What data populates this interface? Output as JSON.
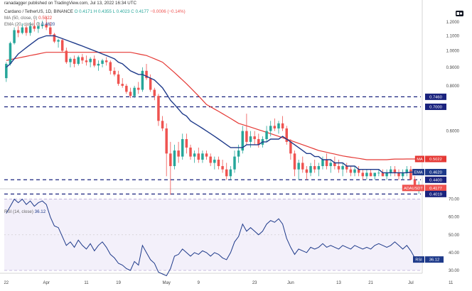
{
  "header": {
    "published_line": "ranadagger published on TradingView.com, Jul 13, 2022 16:34 UTC",
    "symbol": "Cardano / TetherUS, 1D, BINANCE",
    "ohlc_o": "O 0.4171",
    "ohlc_h": "H 0.4355",
    "ohlc_l": "L 0.4023",
    "ohlc_c": "C 0.4177",
    "change": "−0.0006 (−0.14%)",
    "ma_legend_label": "MA (50, close, 0)",
    "ma_legend_value": "0.5022",
    "ema_legend_label": "EMA (20, close, 0)",
    "ema_legend_value": "0.4620",
    "rsi_legend_label": "RSI (14, close)",
    "rsi_legend_value": "36.12"
  },
  "colors": {
    "up": "#26a69a",
    "down": "#ef5350",
    "ma": "#e53935",
    "ema": "#1e3a8a",
    "rsi": "#1e3a8a",
    "level_line": "#1a237e",
    "rsi_band": "#f3f0fa"
  },
  "price_tags": [
    {
      "label": "MA",
      "value": "0.5022",
      "color": "#e53935",
      "price": 0.5022
    },
    {
      "label": "EMA",
      "value": "0.4620",
      "color": "#1e3a8a",
      "price": 0.462
    },
    {
      "label": "",
      "value": "0.4400",
      "color": "#1a237e",
      "price": 0.44
    },
    {
      "label": "ADAUSDT",
      "value": "0.4177",
      "color": "#ef5350",
      "price": 0.4177,
      "sub": "07:25:09"
    },
    {
      "label": "",
      "value": "0.4019",
      "color": "#1a237e",
      "price": 0.4019
    },
    {
      "label": "",
      "value": "0.7000",
      "color": "#1a237e",
      "price": 0.7
    },
    {
      "label": "",
      "value": "0.7460",
      "color": "#1a237e",
      "price": 0.746
    }
  ],
  "rsi_tag": {
    "label": "RSI",
    "value": "36.12"
  },
  "chart_data": {
    "type": "candlestick",
    "symbol": "ADAUSDT",
    "scale": "log",
    "price_axis_ticks": [
      "1.2000",
      "1.1000",
      "1.0000",
      "0.9000",
      "0.8000",
      "0.6000"
    ],
    "price_axis_values": [
      1.2,
      1.1,
      1.0,
      0.9,
      0.8,
      0.6
    ],
    "ylim": [
      0.39,
      1.32
    ],
    "x_tick_labels": [
      "22",
      "Apr",
      "11",
      "19",
      "May",
      "9",
      "23",
      "Jun",
      "13",
      "21",
      "Jul",
      "11"
    ],
    "x_tick_days": [
      0,
      10,
      20,
      28,
      40,
      48,
      62,
      71,
      83,
      91,
      101,
      111
    ],
    "horizontal_levels": [
      0.746,
      0.7,
      0.44,
      0.4019
    ],
    "candles": [
      {
        "o": 0.84,
        "h": 0.93,
        "l": 0.82,
        "c": 0.92
      },
      {
        "o": 0.92,
        "h": 1.06,
        "l": 0.91,
        "c": 1.05
      },
      {
        "o": 1.05,
        "h": 1.16,
        "l": 1.04,
        "c": 1.14
      },
      {
        "o": 1.14,
        "h": 1.17,
        "l": 1.09,
        "c": 1.12
      },
      {
        "o": 1.12,
        "h": 1.19,
        "l": 1.11,
        "c": 1.16
      },
      {
        "o": 1.16,
        "h": 1.18,
        "l": 1.1,
        "c": 1.12
      },
      {
        "o": 1.12,
        "h": 1.2,
        "l": 1.1,
        "c": 1.17
      },
      {
        "o": 1.17,
        "h": 1.22,
        "l": 1.13,
        "c": 1.15
      },
      {
        "o": 1.15,
        "h": 1.2,
        "l": 1.12,
        "c": 1.17
      },
      {
        "o": 1.17,
        "h": 1.21,
        "l": 1.15,
        "c": 1.18
      },
      {
        "o": 1.18,
        "h": 1.24,
        "l": 1.14,
        "c": 1.16
      },
      {
        "o": 1.16,
        "h": 1.2,
        "l": 1.1,
        "c": 1.11
      },
      {
        "o": 1.11,
        "h": 1.12,
        "l": 1.05,
        "c": 1.06
      },
      {
        "o": 1.06,
        "h": 1.08,
        "l": 1.02,
        "c": 1.07
      },
      {
        "o": 1.07,
        "h": 1.08,
        "l": 0.99,
        "c": 1.0
      },
      {
        "o": 1.0,
        "h": 1.02,
        "l": 0.92,
        "c": 0.93
      },
      {
        "o": 0.93,
        "h": 0.96,
        "l": 0.9,
        "c": 0.95
      },
      {
        "o": 0.95,
        "h": 0.97,
        "l": 0.9,
        "c": 0.92
      },
      {
        "o": 0.92,
        "h": 0.97,
        "l": 0.91,
        "c": 0.96
      },
      {
        "o": 0.96,
        "h": 0.98,
        "l": 0.92,
        "c": 0.94
      },
      {
        "o": 0.94,
        "h": 0.97,
        "l": 0.91,
        "c": 0.93
      },
      {
        "o": 0.93,
        "h": 0.96,
        "l": 0.9,
        "c": 0.95
      },
      {
        "o": 0.95,
        "h": 0.97,
        "l": 0.9,
        "c": 0.91
      },
      {
        "o": 0.91,
        "h": 0.94,
        "l": 0.88,
        "c": 0.92
      },
      {
        "o": 0.92,
        "h": 0.95,
        "l": 0.9,
        "c": 0.94
      },
      {
        "o": 0.94,
        "h": 0.96,
        "l": 0.91,
        "c": 0.93
      },
      {
        "o": 0.93,
        "h": 0.94,
        "l": 0.86,
        "c": 0.88
      },
      {
        "o": 0.88,
        "h": 0.9,
        "l": 0.85,
        "c": 0.86
      },
      {
        "o": 0.86,
        "h": 0.88,
        "l": 0.8,
        "c": 0.81
      },
      {
        "o": 0.81,
        "h": 0.84,
        "l": 0.79,
        "c": 0.8
      },
      {
        "o": 0.8,
        "h": 0.81,
        "l": 0.76,
        "c": 0.77
      },
      {
        "o": 0.77,
        "h": 0.79,
        "l": 0.74,
        "c": 0.75
      },
      {
        "o": 0.75,
        "h": 0.8,
        "l": 0.74,
        "c": 0.79
      },
      {
        "o": 0.79,
        "h": 0.82,
        "l": 0.76,
        "c": 0.78
      },
      {
        "o": 0.78,
        "h": 0.9,
        "l": 0.77,
        "c": 0.88
      },
      {
        "o": 0.88,
        "h": 0.92,
        "l": 0.83,
        "c": 0.84
      },
      {
        "o": 0.84,
        "h": 0.86,
        "l": 0.77,
        "c": 0.78
      },
      {
        "o": 0.78,
        "h": 0.79,
        "l": 0.73,
        "c": 0.75
      },
      {
        "o": 0.75,
        "h": 0.76,
        "l": 0.62,
        "c": 0.64
      },
      {
        "o": 0.64,
        "h": 0.66,
        "l": 0.6,
        "c": 0.61
      },
      {
        "o": 0.61,
        "h": 0.63,
        "l": 0.45,
        "c": 0.52
      },
      {
        "o": 0.52,
        "h": 0.56,
        "l": 0.4,
        "c": 0.48
      },
      {
        "o": 0.48,
        "h": 0.55,
        "l": 0.47,
        "c": 0.53
      },
      {
        "o": 0.53,
        "h": 0.56,
        "l": 0.49,
        "c": 0.51
      },
      {
        "o": 0.51,
        "h": 0.59,
        "l": 0.5,
        "c": 0.57
      },
      {
        "o": 0.57,
        "h": 0.59,
        "l": 0.52,
        "c": 0.54
      },
      {
        "o": 0.54,
        "h": 0.55,
        "l": 0.5,
        "c": 0.51
      },
      {
        "o": 0.51,
        "h": 0.53,
        "l": 0.49,
        "c": 0.52
      },
      {
        "o": 0.52,
        "h": 0.54,
        "l": 0.49,
        "c": 0.5
      },
      {
        "o": 0.5,
        "h": 0.53,
        "l": 0.49,
        "c": 0.52
      },
      {
        "o": 0.52,
        "h": 0.53,
        "l": 0.5,
        "c": 0.51
      },
      {
        "o": 0.51,
        "h": 0.52,
        "l": 0.48,
        "c": 0.49
      },
      {
        "o": 0.49,
        "h": 0.51,
        "l": 0.47,
        "c": 0.5
      },
      {
        "o": 0.5,
        "h": 0.51,
        "l": 0.47,
        "c": 0.48
      },
      {
        "o": 0.48,
        "h": 0.5,
        "l": 0.46,
        "c": 0.47
      },
      {
        "o": 0.47,
        "h": 0.49,
        "l": 0.44,
        "c": 0.45
      },
      {
        "o": 0.45,
        "h": 0.48,
        "l": 0.44,
        "c": 0.47
      },
      {
        "o": 0.47,
        "h": 0.53,
        "l": 0.46,
        "c": 0.51
      },
      {
        "o": 0.51,
        "h": 0.55,
        "l": 0.49,
        "c": 0.53
      },
      {
        "o": 0.53,
        "h": 0.62,
        "l": 0.52,
        "c": 0.6
      },
      {
        "o": 0.6,
        "h": 0.67,
        "l": 0.55,
        "c": 0.56
      },
      {
        "o": 0.56,
        "h": 0.6,
        "l": 0.54,
        "c": 0.58
      },
      {
        "o": 0.58,
        "h": 0.6,
        "l": 0.55,
        "c": 0.57
      },
      {
        "o": 0.57,
        "h": 0.59,
        "l": 0.54,
        "c": 0.55
      },
      {
        "o": 0.55,
        "h": 0.58,
        "l": 0.54,
        "c": 0.57
      },
      {
        "o": 0.57,
        "h": 0.62,
        "l": 0.56,
        "c": 0.6
      },
      {
        "o": 0.6,
        "h": 0.64,
        "l": 0.58,
        "c": 0.62
      },
      {
        "o": 0.62,
        "h": 0.65,
        "l": 0.6,
        "c": 0.61
      },
      {
        "o": 0.61,
        "h": 0.64,
        "l": 0.59,
        "c": 0.63
      },
      {
        "o": 0.63,
        "h": 0.66,
        "l": 0.6,
        "c": 0.61
      },
      {
        "o": 0.61,
        "h": 0.62,
        "l": 0.55,
        "c": 0.56
      },
      {
        "o": 0.56,
        "h": 0.57,
        "l": 0.5,
        "c": 0.52
      },
      {
        "o": 0.52,
        "h": 0.53,
        "l": 0.45,
        "c": 0.47
      },
      {
        "o": 0.47,
        "h": 0.5,
        "l": 0.44,
        "c": 0.49
      },
      {
        "o": 0.49,
        "h": 0.51,
        "l": 0.46,
        "c": 0.47
      },
      {
        "o": 0.47,
        "h": 0.48,
        "l": 0.44,
        "c": 0.46
      },
      {
        "o": 0.46,
        "h": 0.49,
        "l": 0.45,
        "c": 0.48
      },
      {
        "o": 0.48,
        "h": 0.5,
        "l": 0.46,
        "c": 0.47
      },
      {
        "o": 0.47,
        "h": 0.49,
        "l": 0.45,
        "c": 0.48
      },
      {
        "o": 0.48,
        "h": 0.51,
        "l": 0.47,
        "c": 0.5
      },
      {
        "o": 0.5,
        "h": 0.52,
        "l": 0.47,
        "c": 0.48
      },
      {
        "o": 0.48,
        "h": 0.5,
        "l": 0.46,
        "c": 0.49
      },
      {
        "o": 0.49,
        "h": 0.51,
        "l": 0.47,
        "c": 0.48
      },
      {
        "o": 0.48,
        "h": 0.5,
        "l": 0.46,
        "c": 0.47
      },
      {
        "o": 0.47,
        "h": 0.49,
        "l": 0.45,
        "c": 0.48
      },
      {
        "o": 0.48,
        "h": 0.49,
        "l": 0.46,
        "c": 0.47
      },
      {
        "o": 0.47,
        "h": 0.48,
        "l": 0.45,
        "c": 0.46
      },
      {
        "o": 0.46,
        "h": 0.48,
        "l": 0.45,
        "c": 0.47
      },
      {
        "o": 0.47,
        "h": 0.48,
        "l": 0.45,
        "c": 0.46
      },
      {
        "o": 0.46,
        "h": 0.47,
        "l": 0.44,
        "c": 0.45
      },
      {
        "o": 0.45,
        "h": 0.47,
        "l": 0.44,
        "c": 0.46
      },
      {
        "o": 0.46,
        "h": 0.47,
        "l": 0.45,
        "c": 0.45
      },
      {
        "o": 0.45,
        "h": 0.46,
        "l": 0.44,
        "c": 0.46
      },
      {
        "o": 0.46,
        "h": 0.47,
        "l": 0.45,
        "c": 0.46
      },
      {
        "o": 0.46,
        "h": 0.47,
        "l": 0.45,
        "c": 0.45
      },
      {
        "o": 0.45,
        "h": 0.47,
        "l": 0.44,
        "c": 0.46
      },
      {
        "o": 0.46,
        "h": 0.48,
        "l": 0.45,
        "c": 0.47
      },
      {
        "o": 0.47,
        "h": 0.48,
        "l": 0.45,
        "c": 0.46
      },
      {
        "o": 0.46,
        "h": 0.47,
        "l": 0.44,
        "c": 0.45
      },
      {
        "o": 0.45,
        "h": 0.47,
        "l": 0.44,
        "c": 0.46
      },
      {
        "o": 0.46,
        "h": 0.48,
        "l": 0.45,
        "c": 0.47
      },
      {
        "o": 0.47,
        "h": 0.48,
        "l": 0.44,
        "c": 0.44
      },
      {
        "o": 0.44,
        "h": 0.45,
        "l": 0.41,
        "c": 0.42
      },
      {
        "o": 0.4171,
        "h": 0.4355,
        "l": 0.4023,
        "c": 0.4177
      }
    ],
    "ema20": [
      0.9,
      0.92,
      0.95,
      0.98,
      1.0,
      1.02,
      1.04,
      1.06,
      1.08,
      1.09,
      1.1,
      1.1,
      1.1,
      1.09,
      1.08,
      1.07,
      1.06,
      1.05,
      1.04,
      1.03,
      1.02,
      1.01,
      1.0,
      0.99,
      0.98,
      0.97,
      0.96,
      0.95,
      0.93,
      0.92,
      0.9,
      0.88,
      0.87,
      0.86,
      0.86,
      0.85,
      0.84,
      0.83,
      0.81,
      0.79,
      0.76,
      0.73,
      0.71,
      0.69,
      0.67,
      0.66,
      0.64,
      0.63,
      0.62,
      0.61,
      0.6,
      0.59,
      0.58,
      0.57,
      0.56,
      0.55,
      0.54,
      0.54,
      0.54,
      0.54,
      0.55,
      0.55,
      0.55,
      0.55,
      0.56,
      0.56,
      0.57,
      0.57,
      0.57,
      0.58,
      0.57,
      0.56,
      0.55,
      0.54,
      0.53,
      0.52,
      0.52,
      0.51,
      0.51,
      0.5,
      0.5,
      0.5,
      0.49,
      0.49,
      0.49,
      0.48,
      0.48,
      0.48,
      0.47,
      0.47,
      0.47,
      0.47,
      0.47,
      0.47,
      0.46,
      0.46,
      0.46,
      0.46,
      0.46,
      0.46,
      0.46,
      0.462,
      0.462,
      0.462
    ],
    "ma50": [
      0.94,
      0.945,
      0.95,
      0.955,
      0.96,
      0.965,
      0.97,
      0.975,
      0.98,
      0.985,
      0.99,
      0.99,
      0.99,
      0.99,
      0.99,
      0.99,
      0.99,
      0.99,
      0.99,
      0.99,
      0.99,
      0.99,
      0.99,
      0.99,
      0.99,
      0.99,
      0.99,
      0.99,
      0.99,
      0.99,
      0.99,
      0.99,
      0.985,
      0.98,
      0.975,
      0.97,
      0.96,
      0.95,
      0.94,
      0.93,
      0.91,
      0.89,
      0.87,
      0.85,
      0.83,
      0.81,
      0.79,
      0.77,
      0.75,
      0.73,
      0.71,
      0.7,
      0.69,
      0.68,
      0.67,
      0.66,
      0.65,
      0.64,
      0.63,
      0.625,
      0.62,
      0.615,
      0.61,
      0.605,
      0.6,
      0.595,
      0.59,
      0.585,
      0.58,
      0.575,
      0.57,
      0.565,
      0.56,
      0.555,
      0.55,
      0.545,
      0.54,
      0.535,
      0.53,
      0.527,
      0.524,
      0.521,
      0.518,
      0.515,
      0.512,
      0.51,
      0.508,
      0.506,
      0.504,
      0.502,
      0.5,
      0.5,
      0.5,
      0.5,
      0.5,
      0.5,
      0.501,
      0.502,
      0.502,
      0.502,
      0.5022,
      0.5022,
      0.5022,
      0.5022
    ],
    "rsi": {
      "name": "RSI",
      "ylim": [
        30,
        75
      ],
      "ticks": [
        70,
        60,
        50,
        40,
        30
      ],
      "tick_labels": [
        "70.00",
        "60.00",
        "50.00",
        "40.00",
        "30.00"
      ],
      "band": [
        30,
        70
      ],
      "midline": 50,
      "values": [
        62,
        66,
        70,
        68,
        70,
        67,
        69,
        66,
        68,
        69,
        67,
        60,
        55,
        54,
        49,
        44,
        46,
        43,
        47,
        44,
        42,
        45,
        41,
        44,
        46,
        43,
        39,
        37,
        34,
        33,
        31,
        30,
        35,
        33,
        44,
        40,
        36,
        34,
        29,
        28,
        27,
        31,
        38,
        39,
        42,
        40,
        38,
        40,
        39,
        41,
        40,
        38,
        40,
        39,
        37,
        36,
        40,
        46,
        49,
        56,
        52,
        54,
        52,
        50,
        52,
        56,
        58,
        57,
        59,
        56,
        48,
        43,
        39,
        42,
        41,
        40,
        43,
        42,
        43,
        45,
        43,
        44,
        43,
        42,
        44,
        43,
        42,
        44,
        43,
        42,
        43,
        42,
        44,
        45,
        44,
        43,
        44,
        46,
        44,
        42,
        44,
        41,
        37,
        36.12
      ]
    }
  }
}
